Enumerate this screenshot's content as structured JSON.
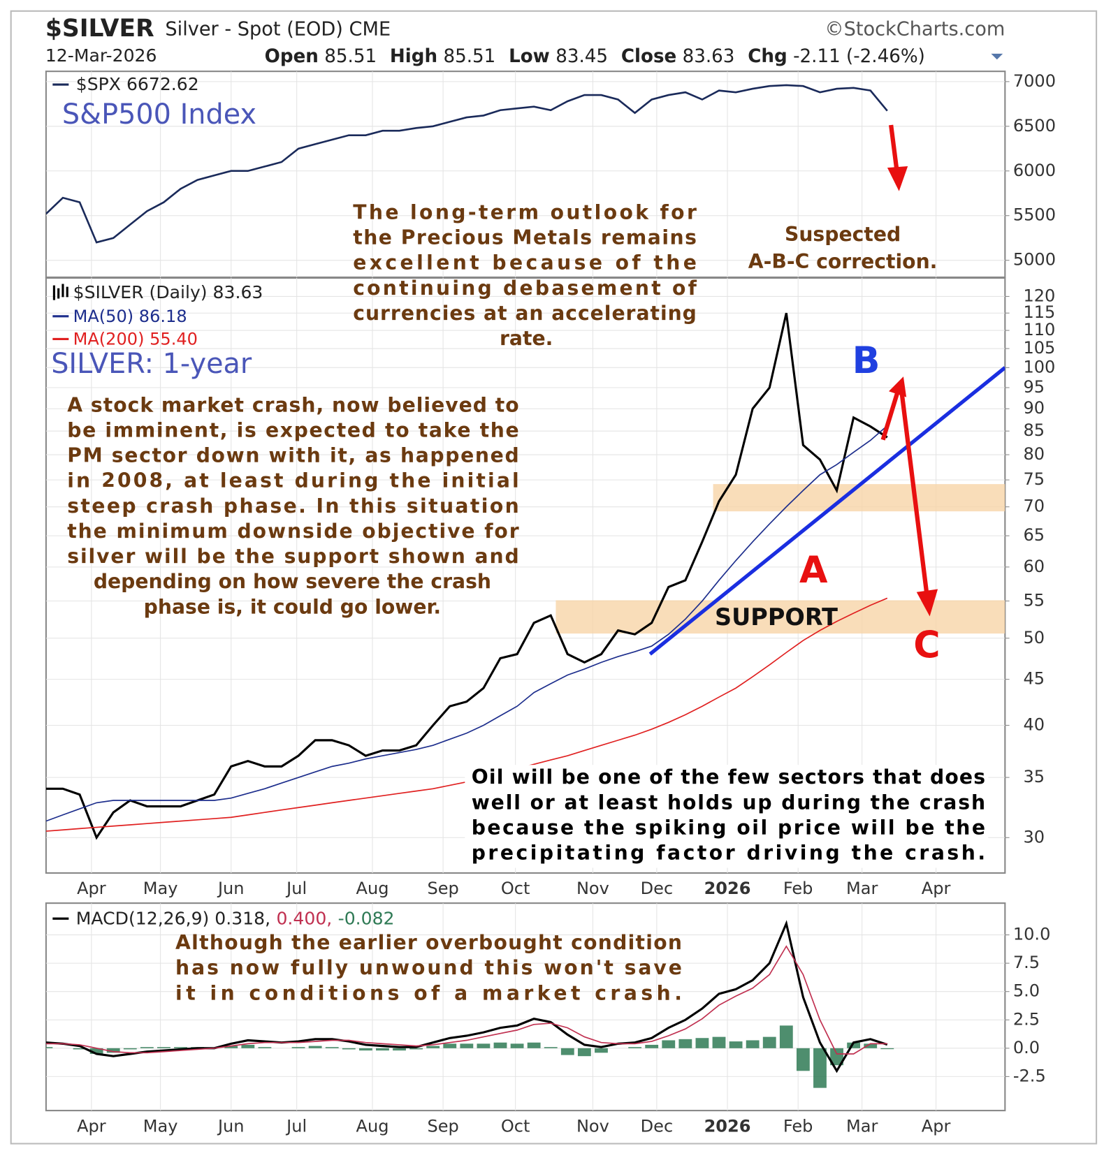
{
  "header": {
    "symbol": "$SILVER",
    "description": "Silver - Spot (EOD) CME",
    "source": "©StockCharts.com",
    "date": "12-Mar-2026",
    "quote": [
      {
        "label": "Open",
        "value": "85.51"
      },
      {
        "label": "High",
        "value": "85.51"
      },
      {
        "label": "Low",
        "value": "83.45"
      },
      {
        "label": "Close",
        "value": "83.63"
      },
      {
        "label": "Chg",
        "value": "-2.11 (-2.46%)"
      }
    ]
  },
  "chart_data": [
    {
      "type": "line",
      "title": "S&P500 Index",
      "grid": true,
      "x": [
        0,
        1,
        2,
        3,
        4,
        5,
        6,
        7,
        8,
        9,
        10,
        11,
        12,
        13,
        14,
        15,
        16,
        17,
        18,
        19,
        20,
        21,
        22,
        23,
        24,
        25,
        26,
        27,
        28,
        29,
        30,
        31,
        32,
        33,
        34,
        35,
        36,
        37,
        38,
        39,
        40,
        41,
        42,
        43,
        44,
        45,
        46,
        47,
        48,
        49,
        50
      ],
      "xlim": [
        0,
        57
      ],
      "ylim": [
        4810,
        7115
      ],
      "yticks": [
        5000,
        5500,
        6000,
        6500,
        7000
      ],
      "series": [
        {
          "name": "$SPX 6672.62",
          "color": "#1a2a5a",
          "values": [
            5520,
            5700,
            5650,
            5200,
            5250,
            5400,
            5550,
            5650,
            5800,
            5900,
            5950,
            6000,
            6000,
            6050,
            6100,
            6250,
            6300,
            6350,
            6400,
            6400,
            6450,
            6450,
            6480,
            6500,
            6550,
            6600,
            6620,
            6680,
            6700,
            6720,
            6680,
            6780,
            6850,
            6850,
            6800,
            6650,
            6800,
            6850,
            6880,
            6800,
            6900,
            6880,
            6920,
            6950,
            6960,
            6950,
            6880,
            6920,
            6930,
            6900,
            6672.62
          ]
        }
      ],
      "annotations": {
        "correction": [
          "Suspected",
          "A-B-C correction."
        ]
      }
    },
    {
      "type": "line",
      "title": "SILVER: 1-year",
      "grid": true,
      "log": true,
      "x": [
        0,
        1,
        2,
        3,
        4,
        5,
        6,
        7,
        8,
        9,
        10,
        11,
        12,
        13,
        14,
        15,
        16,
        17,
        18,
        19,
        20,
        21,
        22,
        23,
        24,
        25,
        26,
        27,
        28,
        29,
        30,
        31,
        32,
        33,
        34,
        35,
        36,
        37,
        38,
        39,
        40,
        41,
        42,
        43,
        44,
        45,
        46,
        47,
        48,
        49,
        50
      ],
      "xlim": [
        0,
        57
      ],
      "ylim": [
        27.4,
        125.8
      ],
      "xticks": [
        {
          "value": 2.7,
          "label": "Apr"
        },
        {
          "value": 6.8,
          "label": "May"
        },
        {
          "value": 11.0,
          "label": "Jun"
        },
        {
          "value": 14.9,
          "label": "Jul"
        },
        {
          "value": 19.4,
          "label": "Aug"
        },
        {
          "value": 23.6,
          "label": "Sep"
        },
        {
          "value": 27.9,
          "label": "Oct"
        },
        {
          "value": 32.5,
          "label": "Nov"
        },
        {
          "value": 36.3,
          "label": "Dec"
        },
        {
          "value": 40.5,
          "label": "2026"
        },
        {
          "value": 44.7,
          "label": "Feb"
        },
        {
          "value": 48.5,
          "label": "Mar"
        },
        {
          "value": 52.9,
          "label": "Apr"
        }
      ],
      "yticks": [
        30,
        35,
        40,
        45,
        50,
        55,
        60,
        65,
        70,
        75,
        80,
        85,
        90,
        95,
        100,
        105,
        110,
        115,
        120
      ],
      "series": [
        {
          "name": "$SILVER (Daily) 83.63",
          "color": "#000000",
          "values": [
            34,
            34,
            33.5,
            30,
            32,
            33,
            32.5,
            32.5,
            32.5,
            33,
            33.5,
            36,
            36.5,
            36,
            36,
            37,
            38.5,
            38.5,
            38,
            37,
            37.5,
            37.5,
            38,
            40,
            42,
            42.5,
            44,
            47.5,
            48,
            52,
            53,
            48,
            47,
            48,
            51,
            50.5,
            52,
            57,
            58,
            64,
            71,
            76,
            90,
            95,
            115,
            82,
            79,
            73,
            88,
            86,
            83.63
          ]
        },
        {
          "name": "MA(50) 86.18",
          "color": "#1c2d8c",
          "values": [
            31.3,
            31.8,
            32.3,
            32.8,
            33,
            33,
            33,
            33,
            33,
            33,
            33,
            33.2,
            33.6,
            34,
            34.5,
            35,
            35.5,
            36,
            36.3,
            36.7,
            37,
            37.3,
            37.6,
            38,
            38.6,
            39.2,
            40,
            41,
            42,
            43.5,
            44.5,
            45.5,
            46.2,
            47,
            47.7,
            48.3,
            49,
            50.5,
            52.5,
            55,
            58,
            61,
            64,
            67,
            70,
            73,
            76,
            78,
            80.5,
            83,
            86.18
          ]
        },
        {
          "name": "MA(200) 55.40",
          "color": "#e02020",
          "values": [
            30.5,
            30.6,
            30.7,
            30.8,
            30.9,
            31,
            31.1,
            31.2,
            31.3,
            31.4,
            31.5,
            31.6,
            31.8,
            32,
            32.2,
            32.4,
            32.6,
            32.8,
            33,
            33.2,
            33.4,
            33.6,
            33.8,
            34,
            34.3,
            34.6,
            35,
            35.4,
            35.8,
            36.2,
            36.6,
            37,
            37.5,
            38,
            38.5,
            39,
            39.6,
            40.3,
            41.1,
            42,
            43,
            44,
            45.3,
            46.7,
            48.2,
            49.7,
            51,
            52.2,
            53.3,
            54.4,
            55.4
          ]
        }
      ],
      "zones": [
        {
          "label": "SUPPORT",
          "x": [
            30.3,
            57
          ],
          "y": [
            50.6,
            55.1
          ]
        },
        {
          "x": [
            39.65,
            57
          ],
          "y": [
            69.2,
            74.2
          ]
        }
      ],
      "trendline": {
        "x": [
          35.9,
          57
        ],
        "y": [
          48,
          100
        ],
        "color": "#1a2ee0"
      },
      "annotations": {
        "outlook": [
          "The long-term outlook for",
          "the Precious Metals remains",
          "excellent because of the",
          "continuing debasement of",
          "currencies at an accelerating",
          "rate."
        ],
        "crash": [
          "A stock market crash, now believed to",
          "be imminent, is expected to take the",
          "PM sector down with it, as happened",
          "in 2008, at least during the initial",
          "steep crash phase. In this situation",
          "the minimum downside objective for",
          "silver will be the support shown and",
          "depending on how severe the crash",
          "phase is, it could go lower."
        ],
        "oil": [
          "Oil will be one of the few sectors that does",
          "well or at least holds up during the crash",
          "because the spiking oil price will be the",
          "precipitating factor driving the crash."
        ],
        "wave_a": "A",
        "wave_b": "B",
        "wave_c": "C"
      }
    },
    {
      "type": "line",
      "grid": true,
      "x": [
        0,
        1,
        2,
        3,
        4,
        5,
        6,
        7,
        8,
        9,
        10,
        11,
        12,
        13,
        14,
        15,
        16,
        17,
        18,
        19,
        20,
        21,
        22,
        23,
        24,
        25,
        26,
        27,
        28,
        29,
        30,
        31,
        32,
        33,
        34,
        35,
        36,
        37,
        38,
        39,
        40,
        41,
        42,
        43,
        44,
        45,
        46,
        47,
        48,
        49,
        50
      ],
      "xlim": [
        0,
        57
      ],
      "ylim": [
        -5.5,
        12.8
      ],
      "xticks": [
        {
          "value": 2.7,
          "label": "Apr"
        },
        {
          "value": 6.8,
          "label": "May"
        },
        {
          "value": 11.0,
          "label": "Jun"
        },
        {
          "value": 14.9,
          "label": "Jul"
        },
        {
          "value": 19.4,
          "label": "Aug"
        },
        {
          "value": 23.6,
          "label": "Sep"
        },
        {
          "value": 27.9,
          "label": "Oct"
        },
        {
          "value": 32.5,
          "label": "Nov"
        },
        {
          "value": 36.3,
          "label": "Dec"
        },
        {
          "value": 40.5,
          "label": "2026"
        },
        {
          "value": 44.7,
          "label": "Feb"
        },
        {
          "value": 48.5,
          "label": "Mar"
        },
        {
          "value": 52.9,
          "label": "Apr"
        }
      ],
      "yticks": [
        -2.5,
        {
          "value": 0,
          "label": "0.0"
        },
        2.5,
        {
          "value": 5,
          "label": "5.0"
        },
        7.5,
        {
          "value": 10,
          "label": "10.0"
        }
      ],
      "series": [
        {
          "name": "MACD(12,26,9) 0.318,",
          "color": "#000000",
          "values": [
            0.5,
            0.4,
            0.2,
            -0.5,
            -0.7,
            -0.5,
            -0.3,
            -0.2,
            -0.1,
            0,
            0,
            0.4,
            0.7,
            0.6,
            0.5,
            0.6,
            0.8,
            0.8,
            0.6,
            0.3,
            0.2,
            0.1,
            0.1,
            0.5,
            0.9,
            1.1,
            1.4,
            1.8,
            2.0,
            2.6,
            2.3,
            1.2,
            0.3,
            0.1,
            0.4,
            0.5,
            0.9,
            1.8,
            2.5,
            3.5,
            4.8,
            5.2,
            6.0,
            7.5,
            11.0,
            4.5,
            0.5,
            -2.0,
            0.5,
            0.8,
            0.318
          ]
        },
        {
          "name": "0.400,",
          "color": "#c03050",
          "values": [
            0.4,
            0.4,
            0.3,
            0,
            -0.3,
            -0.4,
            -0.4,
            -0.3,
            -0.2,
            -0.1,
            0,
            0.2,
            0.4,
            0.5,
            0.5,
            0.5,
            0.6,
            0.7,
            0.7,
            0.5,
            0.4,
            0.3,
            0.2,
            0.3,
            0.5,
            0.7,
            1.0,
            1.3,
            1.6,
            2.1,
            2.2,
            1.8,
            1.0,
            0.5,
            0.4,
            0.4,
            0.6,
            1.1,
            1.7,
            2.6,
            3.8,
            4.6,
            5.3,
            6.5,
            9.0,
            6.5,
            2.5,
            -0.5,
            -0.5,
            0.4,
            0.4
          ]
        },
        {
          "name": "-0.082",
          "color": "#2f7a55",
          "type": "bar",
          "values": [
            0.1,
            0,
            -0.1,
            -0.5,
            -0.4,
            -0.1,
            0.1,
            0.1,
            0.1,
            0.1,
            0,
            0.2,
            0.3,
            0.1,
            0,
            0.1,
            0.2,
            0.1,
            -0.1,
            -0.2,
            -0.2,
            -0.2,
            -0.1,
            0.2,
            0.4,
            0.4,
            0.4,
            0.5,
            0.4,
            0.5,
            0.1,
            -0.6,
            -0.7,
            -0.4,
            0,
            0.1,
            0.3,
            0.7,
            0.8,
            0.9,
            1.0,
            0.6,
            0.7,
            1.0,
            2.0,
            -2.0,
            -3.5,
            -1.5,
            0.5,
            0.4,
            -0.082
          ]
        }
      ],
      "annotations": {
        "note": [
          "Although the earlier overbought condition",
          "has now fully unwound this won't save",
          "it in conditions of a market crash."
        ]
      }
    }
  ]
}
